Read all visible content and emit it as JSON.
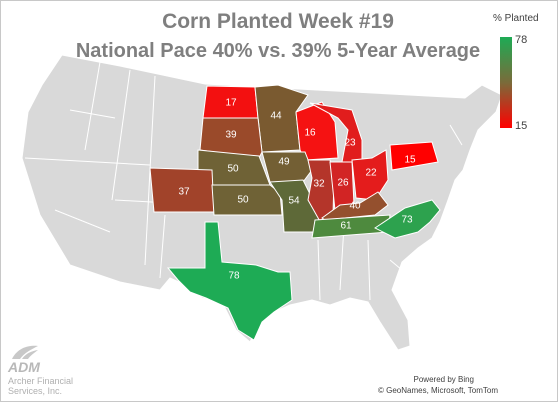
{
  "title": {
    "line1": "Corn Planted Week #19",
    "line2": "National Pace 40% vs. 39% 5-Year Average"
  },
  "legend": {
    "title": "% Planted",
    "max": "78",
    "min": "15",
    "max_color": "#1eab55",
    "min_color": "#ff0000"
  },
  "states": [
    {
      "id": "ND",
      "value": "17",
      "color": "#f31010"
    },
    {
      "id": "MN",
      "value": "44",
      "color": "#7a5a30"
    },
    {
      "id": "SD",
      "value": "39",
      "color": "#9a4a2a"
    },
    {
      "id": "WI",
      "value": "16",
      "color": "#f51212"
    },
    {
      "id": "MI",
      "value": "23",
      "color": "#e11d1d"
    },
    {
      "id": "NE",
      "value": "50",
      "color": "#6f6236"
    },
    {
      "id": "IA",
      "value": "49",
      "color": "#735f34"
    },
    {
      "id": "CO",
      "value": "37",
      "color": "#a1432a"
    },
    {
      "id": "KS",
      "value": "50",
      "color": "#6f6236"
    },
    {
      "id": "MO",
      "value": "54",
      "color": "#5e6938"
    },
    {
      "id": "IL",
      "value": "32",
      "color": "#b4352a"
    },
    {
      "id": "IN",
      "value": "26",
      "color": "#d22424"
    },
    {
      "id": "OH",
      "value": "22",
      "color": "#e41c1c"
    },
    {
      "id": "PA",
      "value": "15",
      "color": "#ff0000"
    },
    {
      "id": "KY",
      "value": "40",
      "color": "#94502e"
    },
    {
      "id": "TN",
      "value": "61",
      "color": "#4e8a3e"
    },
    {
      "id": "NC",
      "value": "73",
      "color": "#2da24e"
    },
    {
      "id": "TX",
      "value": "78",
      "color": "#1eab55"
    }
  ],
  "logo": {
    "word": "ADM",
    "sub1": "Archer Financial",
    "sub2": "Services, Inc."
  },
  "attribution": {
    "line1": "Powered by Bing",
    "line2": "© GeoNames, Microsoft, TomTom"
  },
  "base_color": "#d9d9d9"
}
